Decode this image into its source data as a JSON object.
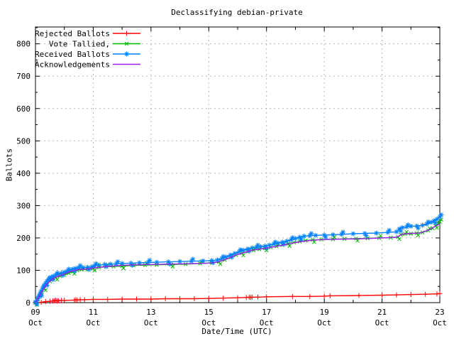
{
  "chart_data": {
    "type": "line",
    "title": "Declassifying debian-private",
    "xlabel": "Date/Time (UTC)",
    "ylabel": "Ballots",
    "x_unit": "days since Oct 09 00:00 UTC",
    "xlim": [
      0,
      14
    ],
    "ylim": [
      0,
      852
    ],
    "grid": true,
    "legend_position": "top-left-inside",
    "colors": {
      "background": "#ffffff",
      "axis": "#000000",
      "grid": "#b5b5b5"
    },
    "y_ticks": {
      "major": [
        0,
        100,
        200,
        300,
        400,
        500,
        600,
        700,
        800
      ],
      "minor": [
        50,
        150,
        250,
        350,
        450,
        550,
        650,
        750,
        850
      ]
    },
    "x_ticks": {
      "major": [
        {
          "day": 0,
          "line1": "09",
          "line2": "Oct"
        },
        {
          "day": 2,
          "line1": "11",
          "line2": "Oct"
        },
        {
          "day": 4,
          "line1": "13",
          "line2": "Oct"
        },
        {
          "day": 6,
          "line1": "15",
          "line2": "Oct"
        },
        {
          "day": 8,
          "line1": "17",
          "line2": "Oct"
        },
        {
          "day": 10,
          "line1": "19",
          "line2": "Oct"
        },
        {
          "day": 12,
          "line1": "21",
          "line2": "Oct"
        },
        {
          "day": 14,
          "line1": "23",
          "line2": "Oct"
        }
      ],
      "minor_days": [
        1,
        3,
        5,
        7,
        9,
        11,
        13
      ]
    },
    "series": [
      {
        "name": "Rejected Ballots",
        "color": "#ff0000",
        "marker": "plus",
        "cloud": false,
        "points": [
          [
            0,
            0
          ],
          [
            0.2,
            1
          ],
          [
            0.35,
            3
          ],
          [
            0.5,
            4
          ],
          [
            0.6,
            5
          ],
          [
            0.65,
            6
          ],
          [
            0.7,
            7
          ],
          [
            0.75,
            5
          ],
          [
            0.8,
            6
          ],
          [
            0.9,
            7
          ],
          [
            1.0,
            7
          ],
          [
            1.35,
            8
          ],
          [
            1.4,
            9
          ],
          [
            1.45,
            8
          ],
          [
            1.55,
            9
          ],
          [
            1.7,
            9
          ],
          [
            2.0,
            10
          ],
          [
            2.5,
            10
          ],
          [
            3.0,
            11
          ],
          [
            3.5,
            11
          ],
          [
            4.0,
            11
          ],
          [
            4.5,
            12
          ],
          [
            5.0,
            12
          ],
          [
            5.5,
            12
          ],
          [
            6.0,
            13
          ],
          [
            6.5,
            14
          ],
          [
            7.0,
            15
          ],
          [
            7.3,
            16
          ],
          [
            7.4,
            17
          ],
          [
            7.45,
            16
          ],
          [
            7.5,
            17
          ],
          [
            7.7,
            17
          ],
          [
            8.0,
            18
          ],
          [
            8.9,
            19
          ],
          [
            9.5,
            19
          ],
          [
            10.0,
            20
          ],
          [
            10.2,
            21
          ],
          [
            11.2,
            22
          ],
          [
            12.0,
            23
          ],
          [
            12.5,
            24
          ],
          [
            13.0,
            25
          ],
          [
            13.5,
            26
          ],
          [
            13.9,
            27
          ],
          [
            14.0,
            28
          ]
        ]
      },
      {
        "name": "Vote Tallied,",
        "color": "#00b800",
        "marker": "cross",
        "cloud": true,
        "points": [
          [
            0,
            0
          ],
          [
            0.08,
            10
          ],
          [
            0.15,
            22
          ],
          [
            0.22,
            33
          ],
          [
            0.3,
            45
          ],
          [
            0.4,
            57
          ],
          [
            0.5,
            66
          ],
          [
            0.6,
            73
          ],
          [
            0.7,
            78
          ],
          [
            0.85,
            82
          ],
          [
            1.0,
            86
          ],
          [
            1.15,
            91
          ],
          [
            1.3,
            96
          ],
          [
            1.45,
            100
          ],
          [
            1.6,
            102
          ],
          [
            1.8,
            103
          ],
          [
            2.0,
            106
          ],
          [
            2.2,
            109
          ],
          [
            2.45,
            111
          ],
          [
            2.7,
            112
          ],
          [
            3.0,
            113
          ],
          [
            3.4,
            115
          ],
          [
            3.8,
            116
          ],
          [
            4.2,
            117
          ],
          [
            4.7,
            118
          ],
          [
            5.2,
            119
          ],
          [
            5.7,
            121
          ],
          [
            6.1,
            123
          ],
          [
            6.35,
            126
          ],
          [
            6.55,
            132
          ],
          [
            6.75,
            140
          ],
          [
            6.95,
            147
          ],
          [
            7.15,
            153
          ],
          [
            7.35,
            158
          ],
          [
            7.55,
            162
          ],
          [
            7.75,
            165
          ],
          [
            7.95,
            168
          ],
          [
            8.15,
            171
          ],
          [
            8.35,
            174
          ],
          [
            8.55,
            178
          ],
          [
            8.75,
            182
          ],
          [
            8.95,
            186
          ],
          [
            9.15,
            189
          ],
          [
            9.35,
            192
          ],
          [
            9.6,
            194
          ],
          [
            9.9,
            195
          ],
          [
            10.3,
            196
          ],
          [
            10.7,
            197
          ],
          [
            11.1,
            198
          ],
          [
            11.5,
            199
          ],
          [
            11.9,
            200
          ],
          [
            12.3,
            201
          ],
          [
            12.55,
            203
          ],
          [
            12.65,
            210
          ],
          [
            12.8,
            212
          ],
          [
            13.0,
            213
          ],
          [
            13.2,
            215
          ],
          [
            13.4,
            217
          ],
          [
            13.6,
            223
          ],
          [
            13.75,
            230
          ],
          [
            13.85,
            238
          ],
          [
            13.95,
            245
          ],
          [
            14.0,
            250
          ]
        ]
      },
      {
        "name": "Received Ballots",
        "color": "#0080ff",
        "marker": "asterisk",
        "cloud": true,
        "points": [
          [
            0,
            2
          ],
          [
            0.05,
            6
          ],
          [
            0.08,
            12
          ],
          [
            0.12,
            20
          ],
          [
            0.16,
            28
          ],
          [
            0.2,
            36
          ],
          [
            0.25,
            45
          ],
          [
            0.3,
            53
          ],
          [
            0.35,
            60
          ],
          [
            0.4,
            66
          ],
          [
            0.45,
            71
          ],
          [
            0.5,
            75
          ],
          [
            0.55,
            78
          ],
          [
            0.62,
            82
          ],
          [
            0.7,
            85
          ],
          [
            0.8,
            88
          ],
          [
            0.9,
            91
          ],
          [
            1.0,
            94
          ],
          [
            1.1,
            97
          ],
          [
            1.2,
            101
          ],
          [
            1.3,
            104
          ],
          [
            1.4,
            106
          ],
          [
            1.5,
            108
          ],
          [
            1.65,
            108
          ],
          [
            1.8,
            109
          ],
          [
            1.95,
            111
          ],
          [
            2.05,
            114
          ],
          [
            2.2,
            116
          ],
          [
            2.4,
            118
          ],
          [
            2.6,
            119
          ],
          [
            2.8,
            120
          ],
          [
            3.0,
            121
          ],
          [
            3.3,
            122
          ],
          [
            3.6,
            123
          ],
          [
            3.9,
            124
          ],
          [
            4.2,
            125
          ],
          [
            4.6,
            126
          ],
          [
            5.0,
            127
          ],
          [
            5.4,
            128
          ],
          [
            5.8,
            129
          ],
          [
            6.1,
            130
          ],
          [
            6.3,
            132
          ],
          [
            6.45,
            136
          ],
          [
            6.6,
            141
          ],
          [
            6.75,
            147
          ],
          [
            6.9,
            152
          ],
          [
            7.05,
            157
          ],
          [
            7.2,
            162
          ],
          [
            7.35,
            166
          ],
          [
            7.5,
            169
          ],
          [
            7.65,
            171
          ],
          [
            7.8,
            173
          ],
          [
            7.95,
            175
          ],
          [
            8.1,
            178
          ],
          [
            8.25,
            181
          ],
          [
            8.4,
            184
          ],
          [
            8.55,
            187
          ],
          [
            8.7,
            190
          ],
          [
            8.85,
            194
          ],
          [
            9.0,
            198
          ],
          [
            9.15,
            202
          ],
          [
            9.3,
            205
          ],
          [
            9.5,
            207
          ],
          [
            9.7,
            208
          ],
          [
            10.0,
            209
          ],
          [
            10.3,
            210
          ],
          [
            10.6,
            211
          ],
          [
            11.0,
            213
          ],
          [
            11.4,
            214
          ],
          [
            11.8,
            215
          ],
          [
            12.2,
            217
          ],
          [
            12.5,
            219
          ],
          [
            12.6,
            228
          ],
          [
            12.7,
            232
          ],
          [
            12.85,
            234
          ],
          [
            13.0,
            236
          ],
          [
            13.2,
            237
          ],
          [
            13.4,
            239
          ],
          [
            13.55,
            243
          ],
          [
            13.7,
            248
          ],
          [
            13.8,
            253
          ],
          [
            13.9,
            258
          ],
          [
            14.0,
            265
          ]
        ]
      },
      {
        "name": "Acknowledgements",
        "color": "#a020f0",
        "marker": null,
        "cloud": false,
        "points": [
          [
            0,
            0
          ],
          [
            0.2,
            30
          ],
          [
            0.4,
            58
          ],
          [
            0.6,
            74
          ],
          [
            0.8,
            82
          ],
          [
            1.0,
            88
          ],
          [
            1.2,
            96
          ],
          [
            1.4,
            101
          ],
          [
            1.6,
            103
          ],
          [
            1.8,
            104
          ],
          [
            2.0,
            107
          ],
          [
            2.5,
            112
          ],
          [
            3.0,
            115
          ],
          [
            3.5,
            117
          ],
          [
            4.0,
            118
          ],
          [
            4.5,
            119
          ],
          [
            5.0,
            120
          ],
          [
            5.5,
            121
          ],
          [
            6.0,
            122
          ],
          [
            6.3,
            125
          ],
          [
            6.6,
            134
          ],
          [
            6.9,
            146
          ],
          [
            7.2,
            154
          ],
          [
            7.5,
            162
          ],
          [
            7.8,
            166
          ],
          [
            8.1,
            170
          ],
          [
            8.4,
            175
          ],
          [
            8.7,
            180
          ],
          [
            9.0,
            186
          ],
          [
            9.3,
            190
          ],
          [
            9.6,
            193
          ],
          [
            10.0,
            195
          ],
          [
            10.5,
            196
          ],
          [
            11.0,
            197
          ],
          [
            11.5,
            198
          ],
          [
            12.0,
            200
          ],
          [
            12.5,
            202
          ],
          [
            12.7,
            212
          ],
          [
            13.0,
            214
          ],
          [
            13.3,
            215
          ],
          [
            13.6,
            224
          ],
          [
            13.8,
            234
          ],
          [
            14.0,
            243
          ]
        ]
      }
    ]
  }
}
